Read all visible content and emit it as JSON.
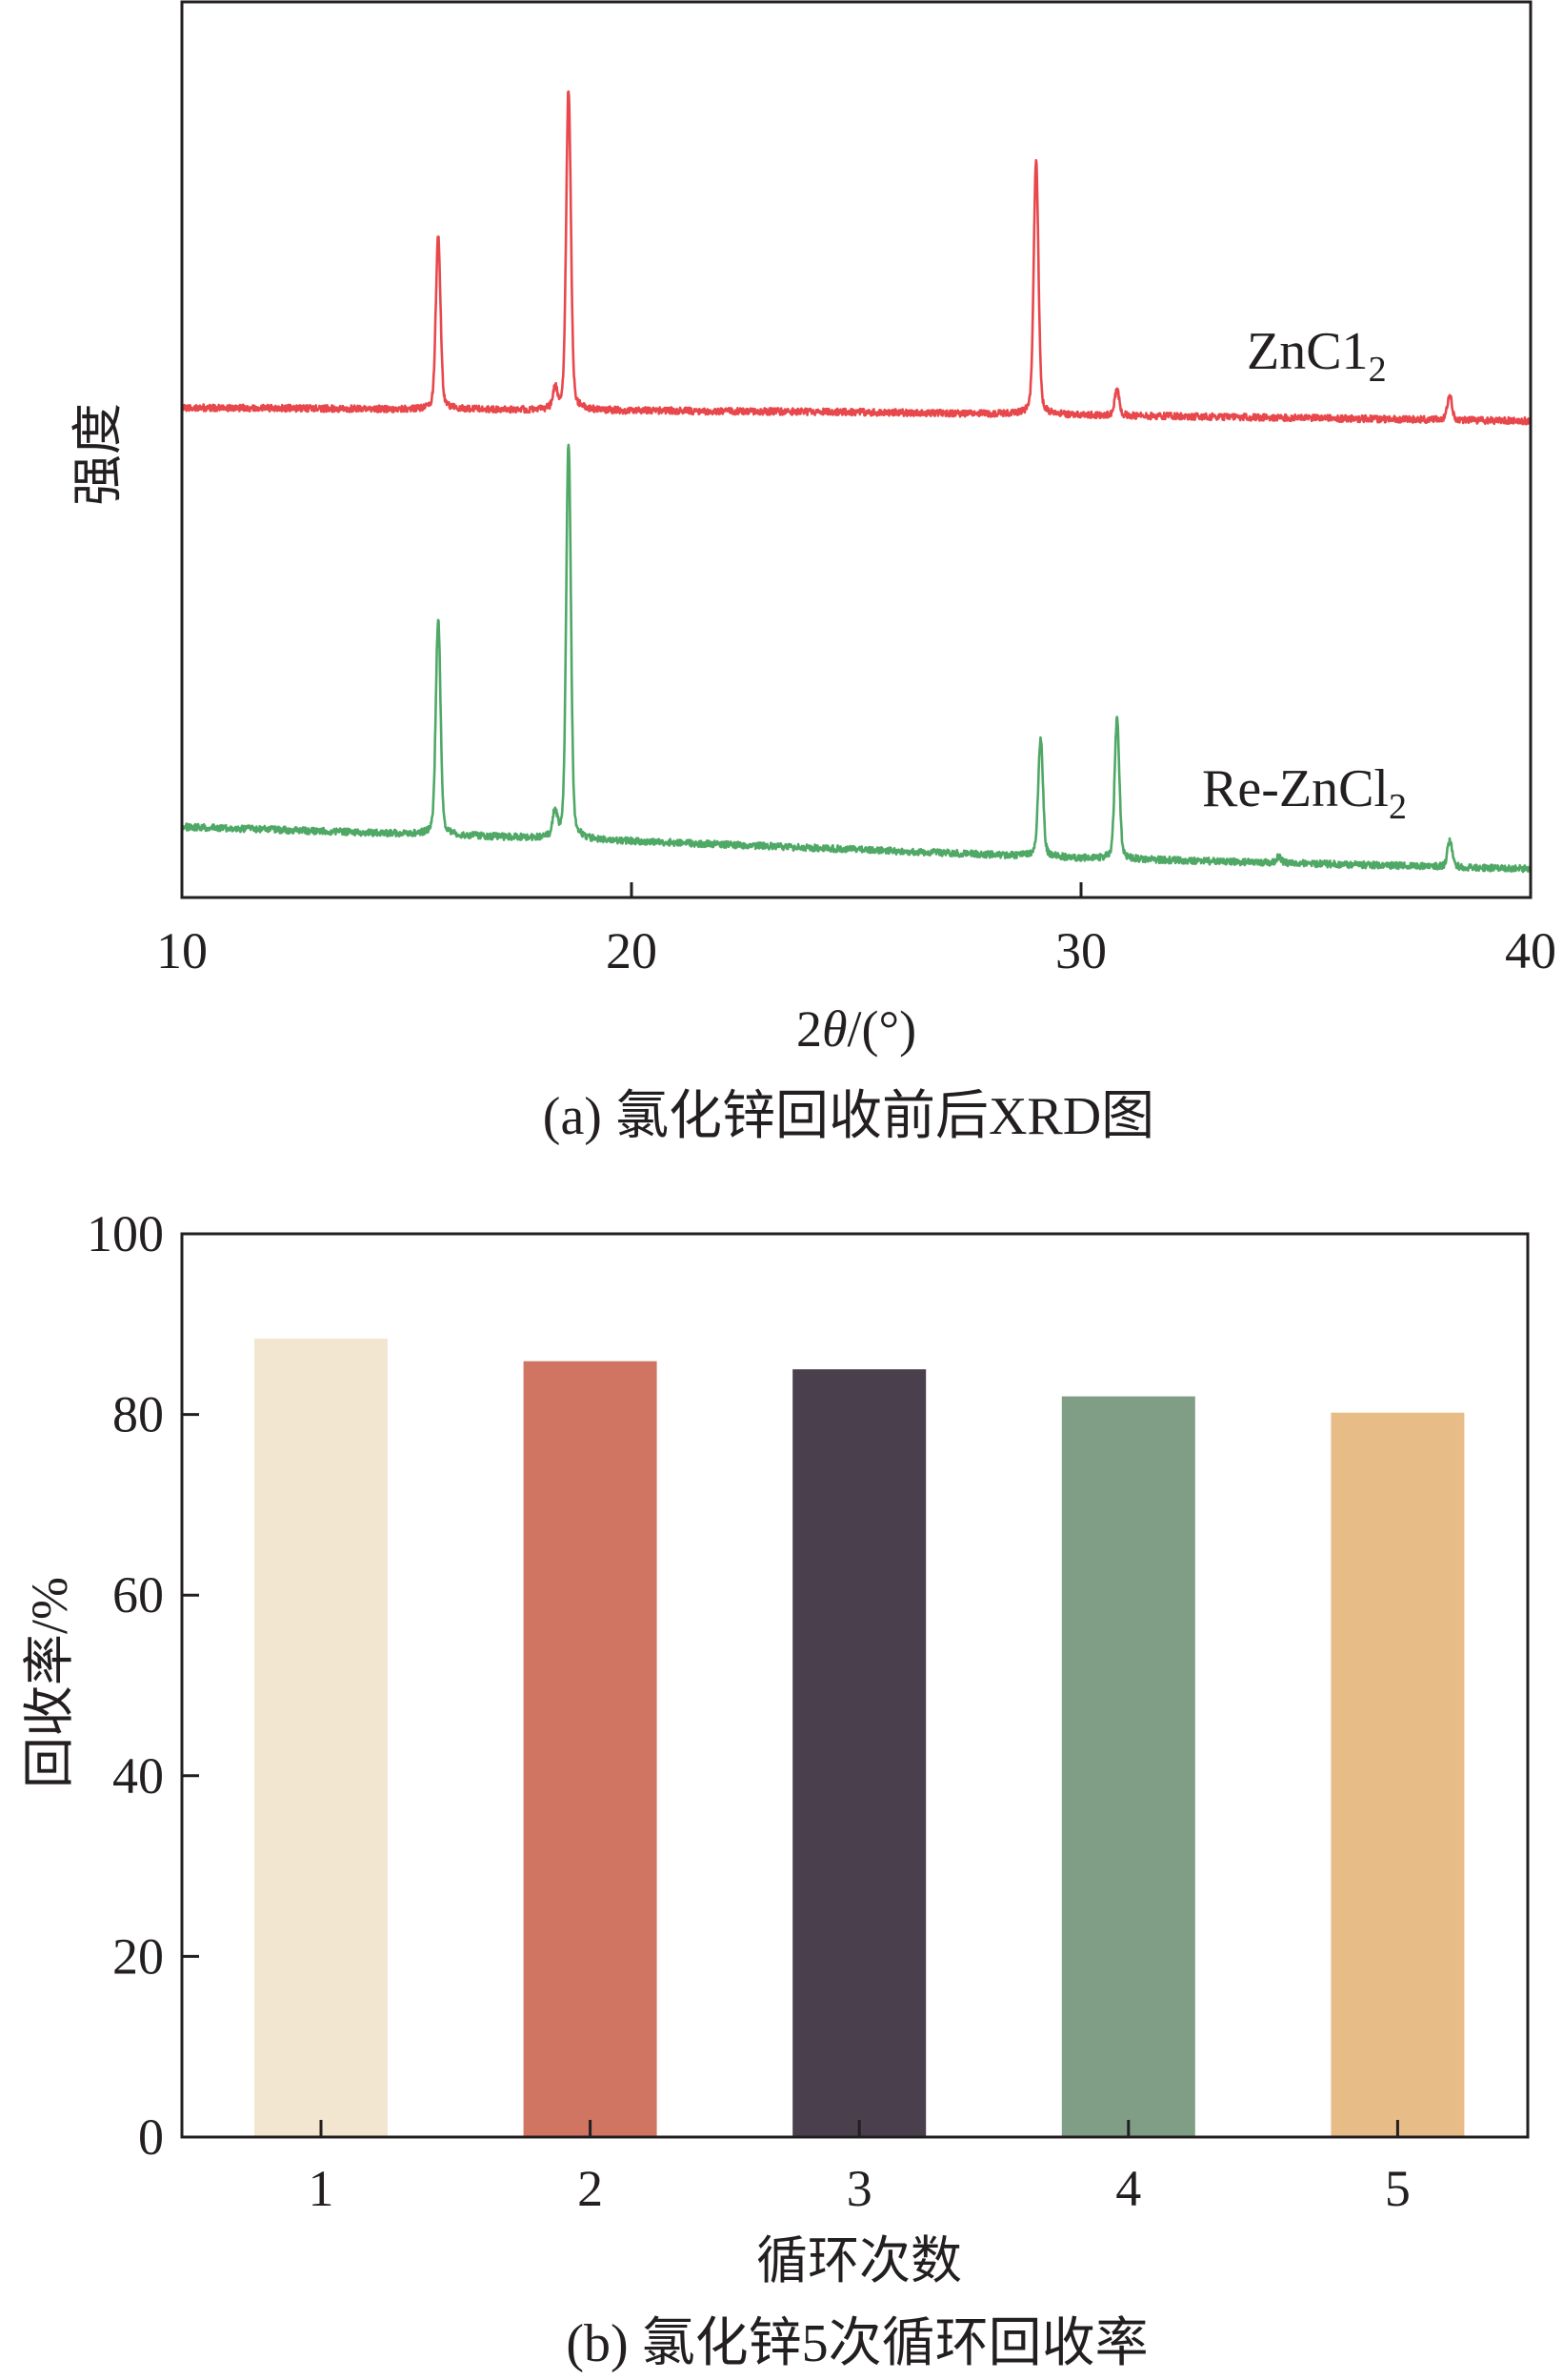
{
  "chart_data": [
    {
      "type": "line",
      "caption": "(a) 氯化锌回收前后XRD图",
      "xlabel": {
        "prefix": "2",
        "symbol": "θ",
        "suffix": "/(°)"
      },
      "ylabel": "强度",
      "xlim": [
        10,
        40
      ],
      "xticks": [
        10,
        20,
        30,
        40
      ],
      "ylim": [
        0,
        100
      ],
      "grid": false,
      "series": [
        {
          "name": "ZnC1",
          "name_sub": "2",
          "color": "#E8474B",
          "baseline": [
            [
              10,
              54.7
            ],
            [
              25,
              54.2
            ],
            [
              40,
              53.2
            ]
          ],
          "peaks": [
            {
              "x": 15.7,
              "y": 73.8
            },
            {
              "x": 18.3,
              "y": 56.6
            },
            {
              "x": 18.6,
              "y": 90.2
            },
            {
              "x": 29.0,
              "y": 82.3
            },
            {
              "x": 30.8,
              "y": 56.6
            },
            {
              "x": 38.2,
              "y": 56.1
            }
          ]
        },
        {
          "name": "Re-ZnCl",
          "name_sub": "2",
          "color": "#4FA866",
          "baseline": [
            [
              10,
              7.9
            ],
            [
              20,
              6.3
            ],
            [
              30,
              4.4
            ],
            [
              40,
              3.2
            ]
          ],
          "peaks": [
            {
              "x": 15.7,
              "y": 31.1
            },
            {
              "x": 18.3,
              "y": 9.3
            },
            {
              "x": 18.6,
              "y": 50.7
            },
            {
              "x": 29.1,
              "y": 17.7
            },
            {
              "x": 30.8,
              "y": 19.9
            },
            {
              "x": 34.4,
              "y": 4.6
            },
            {
              "x": 38.2,
              "y": 6.3
            }
          ]
        }
      ]
    },
    {
      "type": "bar",
      "caption": "(b) 氯化锌5次循环回收率",
      "xlabel": "循环次数",
      "ylabel": "回收率/%",
      "categories": [
        "1",
        "2",
        "3",
        "4",
        "5"
      ],
      "values": [
        88.4,
        85.9,
        85.0,
        82.0,
        80.2
      ],
      "colors": [
        "#F2E6D0",
        "#D07562",
        "#4A3F4C",
        "#809D85",
        "#E8BC87"
      ],
      "ylim": [
        0,
        100
      ],
      "yticks": [
        0,
        20,
        40,
        60,
        80,
        100
      ],
      "grid": false
    }
  ]
}
